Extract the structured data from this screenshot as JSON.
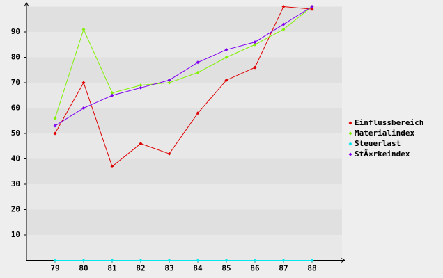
{
  "chart_data": {
    "type": "line",
    "categories": [
      "79",
      "80",
      "81",
      "82",
      "83",
      "84",
      "85",
      "86",
      "87",
      "88"
    ],
    "series": [
      {
        "name": "Einflussbereich",
        "color": "#e00000",
        "values": [
          50,
          70,
          37,
          46,
          42,
          58,
          71,
          76,
          100,
          99
        ]
      },
      {
        "name": "Materialindex",
        "color": "#80f000",
        "values": [
          56,
          91,
          66,
          69,
          70,
          74,
          80,
          85,
          91,
          100
        ]
      },
      {
        "name": "Steuerlast",
        "color": "#00e8f0",
        "values": [
          0,
          0,
          0,
          0,
          0,
          0,
          0,
          0,
          0,
          0
        ]
      },
      {
        "name": "StÃ¤rkeindex",
        "color": "#8000f0",
        "values": [
          53,
          60,
          65,
          68,
          71,
          78,
          83,
          86,
          93,
          100
        ]
      }
    ],
    "ylim": [
      0,
      100
    ],
    "yticks": [
      10,
      20,
      30,
      40,
      50,
      60,
      70,
      80,
      90
    ],
    "grid": true,
    "legend": "right"
  }
}
